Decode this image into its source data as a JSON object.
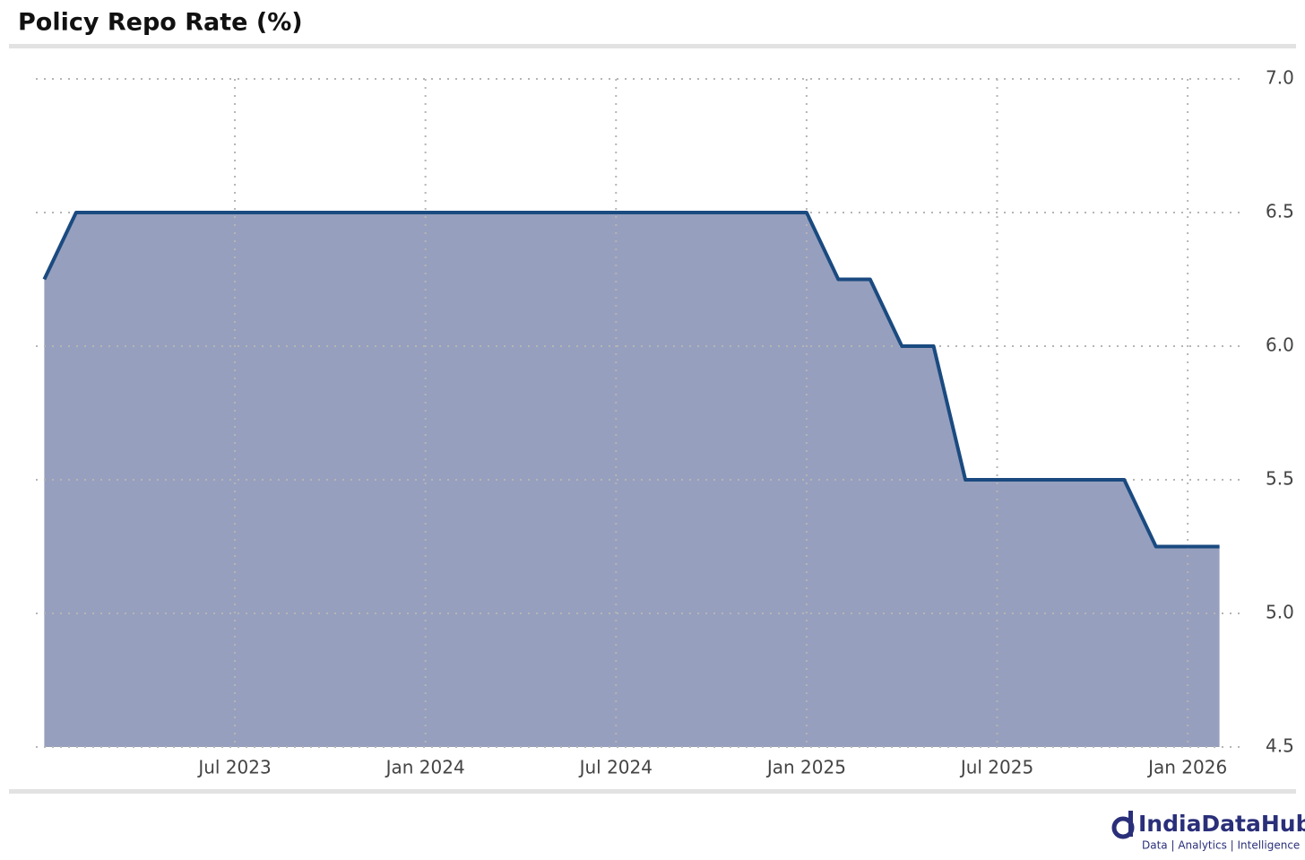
{
  "chart_data": {
    "type": "area",
    "title": "Policy Repo Rate (%)",
    "x": [
      "2023-01",
      "2023-02",
      "2023-03",
      "2023-04",
      "2023-05",
      "2023-06",
      "2023-07",
      "2023-08",
      "2023-09",
      "2023-10",
      "2023-11",
      "2023-12",
      "2024-01",
      "2024-02",
      "2024-03",
      "2024-04",
      "2024-05",
      "2024-06",
      "2024-07",
      "2024-08",
      "2024-09",
      "2024-10",
      "2024-11",
      "2024-12",
      "2025-01",
      "2025-02",
      "2025-03",
      "2025-04",
      "2025-05",
      "2025-06",
      "2025-07",
      "2025-08",
      "2025-09",
      "2025-10",
      "2025-11",
      "2025-12",
      "2026-01",
      "2026-02"
    ],
    "values": [
      6.25,
      6.5,
      6.5,
      6.5,
      6.5,
      6.5,
      6.5,
      6.5,
      6.5,
      6.5,
      6.5,
      6.5,
      6.5,
      6.5,
      6.5,
      6.5,
      6.5,
      6.5,
      6.5,
      6.5,
      6.5,
      6.5,
      6.5,
      6.5,
      6.5,
      6.25,
      6.25,
      6.0,
      6.0,
      5.5,
      5.5,
      5.5,
      5.5,
      5.5,
      5.5,
      5.25,
      5.25,
      5.25
    ],
    "color": "#1a4a80",
    "fill_color": "#969fbd",
    "xlim": [
      "2022-12",
      "2026-03"
    ],
    "xticks": [
      {
        "value": "2023-07",
        "label": "Jul 2023"
      },
      {
        "value": "2024-01",
        "label": "Jan 2024"
      },
      {
        "value": "2024-07",
        "label": "Jul 2024"
      },
      {
        "value": "2025-01",
        "label": "Jan 2025"
      },
      {
        "value": "2025-07",
        "label": "Jul 2025"
      },
      {
        "value": "2026-01",
        "label": "Jan 2026"
      }
    ],
    "ylim": [
      4.5,
      7.0
    ],
    "yticks": [
      4.5,
      {
        "value": 5,
        "label": "5.0"
      },
      5.5,
      {
        "value": 6,
        "label": "6.0"
      },
      6.5,
      {
        "value": 7,
        "label": "7.0"
      }
    ],
    "grid": true
  },
  "footer": {
    "brand": "IndiaDataHub",
    "tagline": "Data | Analytics | Intelligence"
  }
}
